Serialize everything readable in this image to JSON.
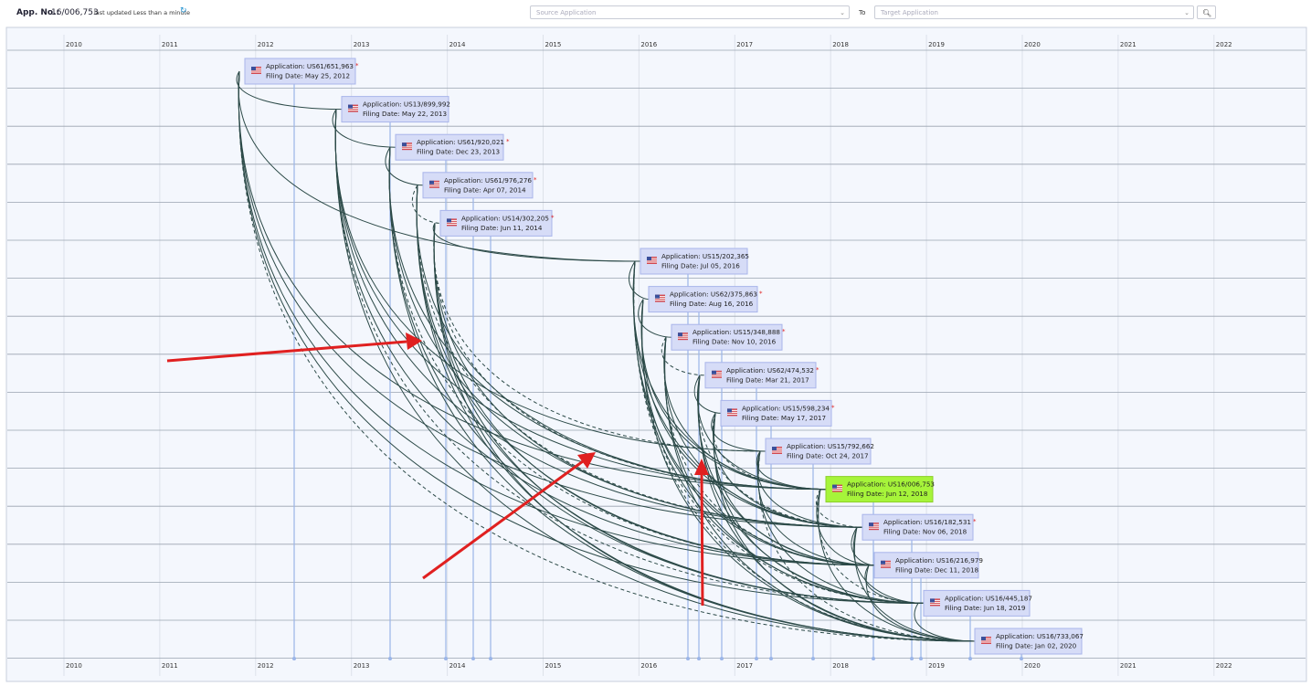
{
  "header": {
    "app_label": "App. No.:",
    "app_no": "16/006,753",
    "updated": "last updated Less than a minute",
    "source_placeholder": "Source Application",
    "to": "To",
    "target_placeholder": "Target Application"
  },
  "years": [
    2010,
    2011,
    2012,
    2013,
    2014,
    2015,
    2016,
    2017,
    2018,
    2019,
    2020,
    2021,
    2022
  ],
  "nodes": [
    {
      "application": "Application: US61/651,963",
      "star": "*",
      "filing": "Filing Date: May 25, 2012"
    },
    {
      "application": "Application: US13/899,992",
      "filing": "Filing Date: May 22, 2013"
    },
    {
      "application": "Application: US61/920,021",
      "star": "*",
      "filing": "Filing Date: Dec 23, 2013"
    },
    {
      "application": "Application: US61/976,276",
      "star": "*",
      "filing": "Filing Date: Apr 07, 2014"
    },
    {
      "application": "Application: US14/302,205",
      "star": "*",
      "filing": "Filing Date: Jun 11, 2014"
    },
    {
      "application": "Application: US15/202,365",
      "filing": "Filing Date: Jul 05, 2016"
    },
    {
      "application": "Application: US62/375,863",
      "star": "*",
      "filing": "Filing Date: Aug 16, 2016"
    },
    {
      "application": "Application: US15/348,888",
      "star": "*",
      "filing": "Filing Date: Nov 10, 2016"
    },
    {
      "application": "Application: US62/474,532",
      "star": "*",
      "filing": "Filing Date: Mar 21, 2017"
    },
    {
      "application": "Application: US15/598,234",
      "star": "*",
      "filing": "Filing Date: May 17, 2017"
    },
    {
      "application": "Application: US15/792,662",
      "filing": "Filing Date: Oct 24, 2017"
    },
    {
      "application": "Application: US16/006,753",
      "filing": "Filing Date: Jun 12, 2018"
    },
    {
      "application": "Application: US16/182,531",
      "star": "*",
      "filing": "Filing Date: Nov 06, 2018"
    },
    {
      "application": "Application: US16/216,979",
      "filing": "Filing Date: Dec 11, 2018"
    },
    {
      "application": "Application: US16/445,187",
      "filing": "Filing Date: Jun 18, 2019"
    },
    {
      "application": "Application: US16/733,067",
      "filing": "Filing Date: Jan 02, 2020"
    }
  ]
}
